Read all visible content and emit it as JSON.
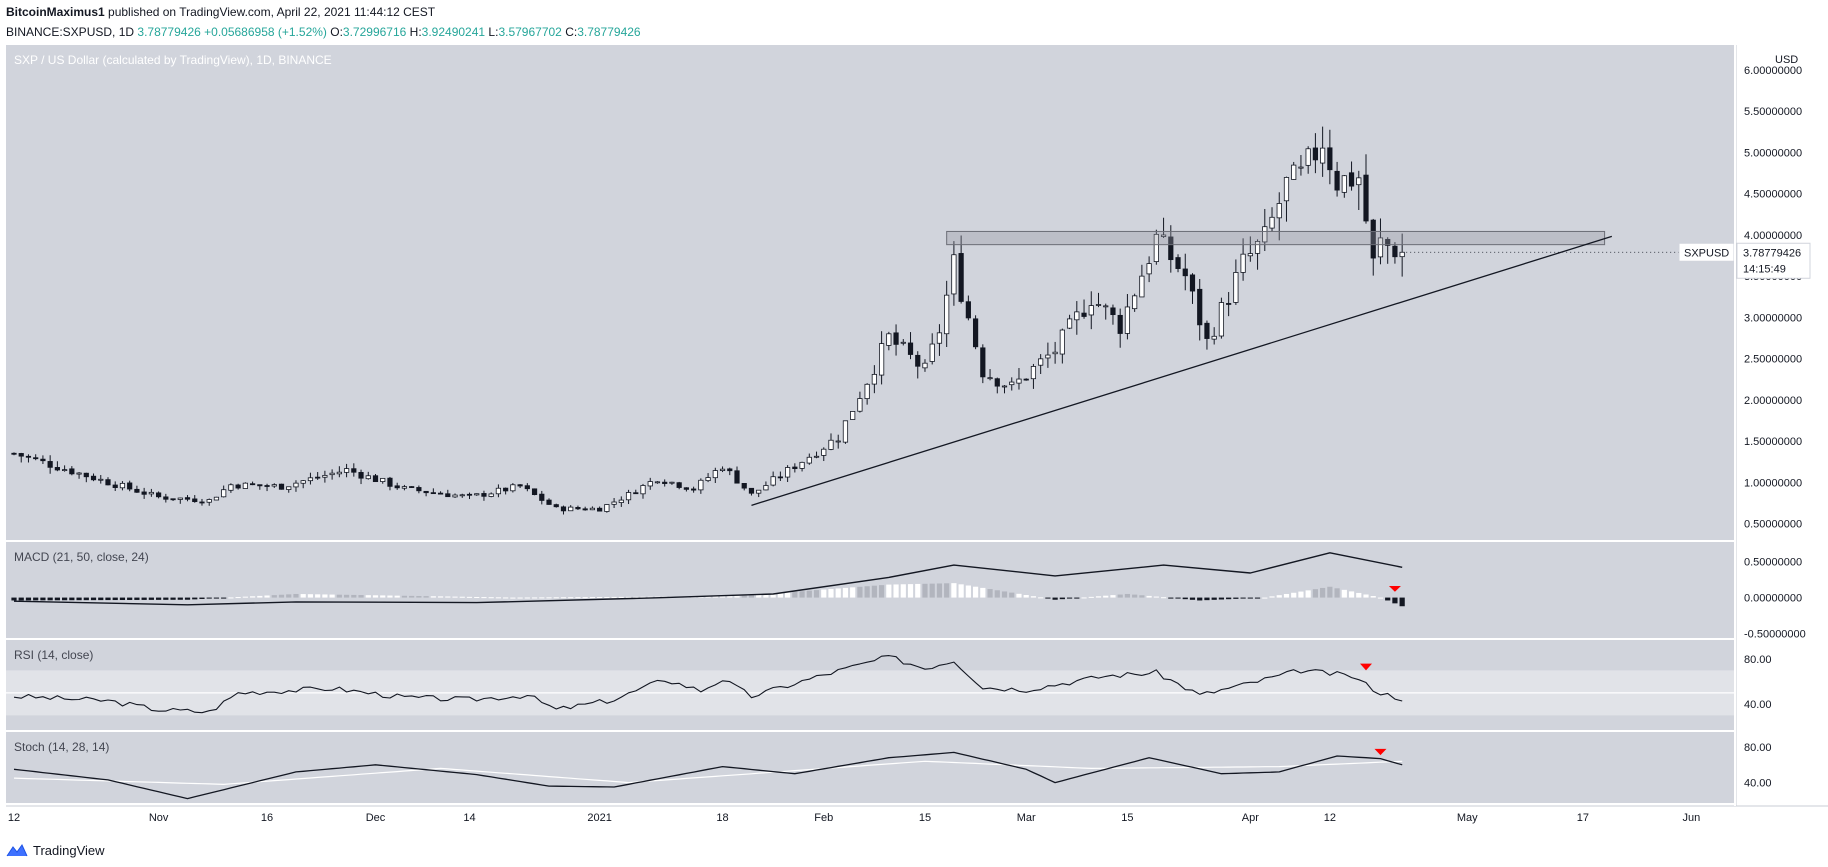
{
  "header": {
    "author": "BitcoinMaximus1",
    "published_text": " published on TradingView.com, April 22, 2021 11:44:12 CEST",
    "symbol": "BINANCE:SXPUSD, 1D",
    "price": "3.78779426",
    "change": "+0.05686958 (+1.52%)",
    "ohlc": {
      "o": "3.72996716",
      "h": "3.92490241",
      "l": "3.57967702",
      "c": "3.78779426"
    }
  },
  "footer": {
    "brand": "TradingView",
    "logo_icon": "tradingview-logo-icon"
  },
  "colors": {
    "panel_bg": "#d1d4dc",
    "candle_up": "#ffffff",
    "candle_down": "#131722",
    "wick": "#131722",
    "signal_marker": "#ff0000",
    "macd_pos_hist": "#ffffff",
    "macd_neg_hist": "#131722"
  },
  "chart_data": [
    {
      "type": "candlestick",
      "title": "SXP / US Dollar (calculated by TradingView), 1D, BINANCE",
      "axis_unit": "USD",
      "ylim": [
        0.3,
        6.3
      ],
      "yticks": [
        "6.00000000",
        "5.50000000",
        "5.00000000",
        "4.50000000",
        "4.00000000",
        "3.50000000",
        "3.00000000",
        "2.50000000",
        "2.00000000",
        "1.50000000",
        "1.00000000",
        "0.50000000"
      ],
      "ytick_values": [
        6.0,
        5.5,
        5.0,
        4.5,
        4.0,
        3.5,
        3.0,
        2.5,
        2.0,
        1.5,
        1.0,
        0.5
      ],
      "x_tick_labels": [
        "12",
        "Nov",
        "16",
        "Dec",
        "14",
        "2021",
        "18",
        "Feb",
        "15",
        "Mar",
        "15",
        "Apr",
        "12",
        "May",
        "17",
        "Jun"
      ],
      "price_label": "SXPUSD",
      "price_value": "3.78779426",
      "countdown": "14:15:49",
      "current_price": 3.7878,
      "anchors": [
        [
          "2020-10-12",
          1.35
        ],
        [
          "2020-10-25",
          1.0
        ],
        [
          "2020-11-01",
          0.82
        ],
        [
          "2020-11-08",
          0.78
        ],
        [
          "2020-11-11",
          0.97
        ],
        [
          "2020-11-18",
          0.95
        ],
        [
          "2020-11-27",
          1.15
        ],
        [
          "2020-12-05",
          0.92
        ],
        [
          "2020-12-14",
          0.82
        ],
        [
          "2020-12-21",
          0.95
        ],
        [
          "2020-12-26",
          0.68
        ],
        [
          "2021-01-01",
          0.68
        ],
        [
          "2021-01-05",
          0.85
        ],
        [
          "2021-01-09",
          1.05
        ],
        [
          "2021-01-14",
          0.92
        ],
        [
          "2021-01-18",
          1.2
        ],
        [
          "2021-01-22",
          0.85
        ],
        [
          "2021-01-28",
          1.2
        ],
        [
          "2021-02-03",
          1.55
        ],
        [
          "2021-02-10",
          2.75
        ],
        [
          "2021-02-15",
          2.35
        ],
        [
          "2021-02-17",
          2.85
        ],
        [
          "2021-02-19",
          3.65
        ],
        [
          "2021-02-23",
          2.35
        ],
        [
          "2021-02-27",
          2.15
        ],
        [
          "2021-03-05",
          2.6
        ],
        [
          "2021-03-10",
          3.25
        ],
        [
          "2021-03-14",
          2.9
        ],
        [
          "2021-03-19",
          3.95
        ],
        [
          "2021-03-23",
          3.5
        ],
        [
          "2021-03-26",
          2.7
        ],
        [
          "2021-03-31",
          3.65
        ],
        [
          "2021-04-03",
          3.95
        ],
        [
          "2021-04-06",
          4.6
        ],
        [
          "2021-04-08",
          4.7
        ],
        [
          "2021-04-11",
          5.15
        ],
        [
          "2021-04-13",
          4.65
        ],
        [
          "2021-04-16",
          4.7
        ],
        [
          "2021-04-18",
          3.65
        ],
        [
          "2021-04-19",
          3.9
        ],
        [
          "2021-04-22",
          3.79
        ]
      ],
      "resistance_zone": {
        "from": "2021-02-18",
        "to": "2021-05-20",
        "low": 3.88,
        "high": 4.04
      },
      "trendline": {
        "from": [
          "2021-01-22",
          0.72
        ],
        "to": [
          "2021-05-21",
          3.98
        ]
      }
    },
    {
      "type": "macd",
      "title": "MACD (21, 50, close, 24)",
      "ylim": [
        -0.56,
        0.77
      ],
      "yticks": [
        "0.50000000",
        "0.00000000",
        "-0.50000000"
      ],
      "ytick_values": [
        0.5,
        0.0,
        -0.5
      ],
      "macd_line": [
        [
          "2020-10-12",
          -0.05
        ],
        [
          "2020-11-05",
          -0.1
        ],
        [
          "2020-11-20",
          -0.06
        ],
        [
          "2020-12-15",
          -0.07
        ],
        [
          "2021-01-10",
          0.0
        ],
        [
          "2021-01-25",
          0.05
        ],
        [
          "2021-02-10",
          0.28
        ],
        [
          "2021-02-19",
          0.45
        ],
        [
          "2021-03-05",
          0.3
        ],
        [
          "2021-03-20",
          0.45
        ],
        [
          "2021-04-01",
          0.34
        ],
        [
          "2021-04-12",
          0.62
        ],
        [
          "2021-04-22",
          0.42
        ]
      ],
      "histogram": [
        [
          "2020-10-12",
          -0.04
        ],
        [
          "2020-11-05",
          -0.03
        ],
        [
          "2020-11-20",
          0.05
        ],
        [
          "2020-12-20",
          0.0
        ],
        [
          "2021-01-20",
          0.02
        ],
        [
          "2021-02-10",
          0.18
        ],
        [
          "2021-02-19",
          0.2
        ],
        [
          "2021-03-05",
          -0.03
        ],
        [
          "2021-03-15",
          0.05
        ],
        [
          "2021-03-25",
          -0.04
        ],
        [
          "2021-04-03",
          0.0
        ],
        [
          "2021-04-12",
          0.15
        ],
        [
          "2021-04-19",
          0.0
        ],
        [
          "2021-04-22",
          -0.12
        ]
      ],
      "signal_marker_date": "2021-04-21"
    },
    {
      "type": "line",
      "title": "RSI (14, close)",
      "ylim": [
        17,
        97
      ],
      "yticks": [
        "80.00",
        "40.00"
      ],
      "ytick_values": [
        80,
        40
      ],
      "band": [
        30,
        70
      ],
      "midline": 50,
      "rsi": [
        [
          "2020-10-12",
          47
        ],
        [
          "2020-10-25",
          43
        ],
        [
          "2020-11-01",
          35
        ],
        [
          "2020-11-08",
          33
        ],
        [
          "2020-11-12",
          50
        ],
        [
          "2020-11-25",
          54
        ],
        [
          "2020-12-05",
          46
        ],
        [
          "2020-12-14",
          44
        ],
        [
          "2020-12-22",
          48
        ],
        [
          "2020-12-26",
          35
        ],
        [
          "2021-01-03",
          44
        ],
        [
          "2021-01-10",
          62
        ],
        [
          "2021-01-15",
          52
        ],
        [
          "2021-01-18",
          62
        ],
        [
          "2021-01-22",
          47
        ],
        [
          "2021-02-01",
          66
        ],
        [
          "2021-02-10",
          82
        ],
        [
          "2021-02-15",
          72
        ],
        [
          "2021-02-19",
          79
        ],
        [
          "2021-02-23",
          55
        ],
        [
          "2021-03-01",
          53
        ],
        [
          "2021-03-12",
          65
        ],
        [
          "2021-03-19",
          68
        ],
        [
          "2021-03-25",
          48
        ],
        [
          "2021-03-31",
          57
        ],
        [
          "2021-04-08",
          70
        ],
        [
          "2021-04-15",
          65
        ],
        [
          "2021-04-19",
          50
        ],
        [
          "2021-04-22",
          45
        ]
      ],
      "signal_marker_date": "2021-04-17"
    },
    {
      "type": "line",
      "title": "Stoch (14, 28, 14)",
      "ylim": [
        17,
        97
      ],
      "yticks": [
        "80.00",
        "40.00"
      ],
      "ytick_values": [
        80,
        40
      ],
      "k": [
        [
          "2020-10-12",
          55
        ],
        [
          "2020-10-25",
          43
        ],
        [
          "2020-11-05",
          22
        ],
        [
          "2020-11-20",
          52
        ],
        [
          "2020-12-01",
          60
        ],
        [
          "2020-12-15",
          49
        ],
        [
          "2020-12-25",
          36
        ],
        [
          "2021-01-03",
          35
        ],
        [
          "2021-01-18",
          58
        ],
        [
          "2021-01-28",
          50
        ],
        [
          "2021-02-10",
          68
        ],
        [
          "2021-02-19",
          74
        ],
        [
          "2021-03-01",
          55
        ],
        [
          "2021-03-05",
          40
        ],
        [
          "2021-03-18",
          68
        ],
        [
          "2021-03-28",
          50
        ],
        [
          "2021-04-05",
          52
        ],
        [
          "2021-04-13",
          70
        ],
        [
          "2021-04-19",
          67
        ],
        [
          "2021-04-22",
          60
        ]
      ],
      "d": [
        [
          "2020-10-12",
          45
        ],
        [
          "2020-11-10",
          38
        ],
        [
          "2020-12-10",
          56
        ],
        [
          "2021-01-05",
          40
        ],
        [
          "2021-02-15",
          64
        ],
        [
          "2021-03-10",
          56
        ],
        [
          "2021-04-05",
          58
        ],
        [
          "2021-04-22",
          64
        ]
      ],
      "signal_marker_date": "2021-04-19"
    }
  ]
}
